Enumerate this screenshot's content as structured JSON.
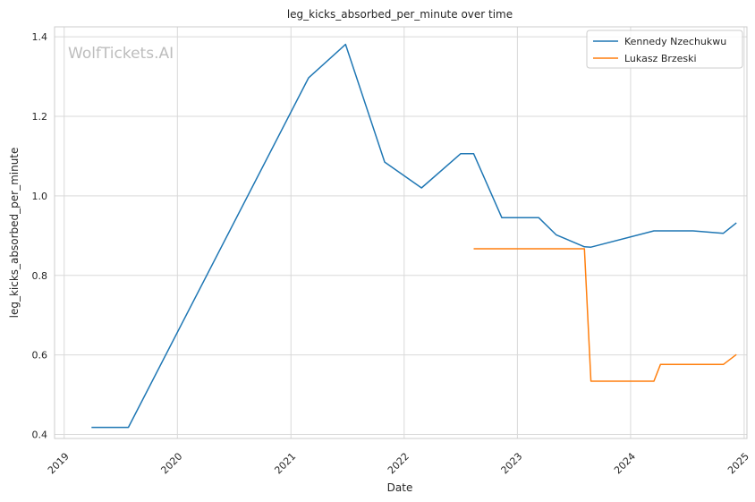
{
  "chart_data": {
    "type": "line",
    "title": "leg_kicks_absorbed_per_minute over time",
    "xlabel": "Date",
    "ylabel": "leg_kicks_absorbed_per_minute",
    "watermark": "WolfTickets.AI",
    "legend_position": "top-right",
    "grid": true,
    "xlim": [
      "2018-12-01",
      "2025-01-10"
    ],
    "ylim": [
      0.39,
      1.425
    ],
    "x_ticks": [
      "2019-01-01",
      "2020-01-01",
      "2021-01-01",
      "2022-01-01",
      "2023-01-01",
      "2024-01-01",
      "2025-01-01"
    ],
    "x_tick_labels": [
      "2019",
      "2020",
      "2021",
      "2022",
      "2023",
      "2024",
      "2025"
    ],
    "y_ticks": [
      0.4,
      0.6,
      0.8,
      1.0,
      1.2,
      1.4
    ],
    "y_tick_labels": [
      "0.4",
      "0.6",
      "0.8",
      "1.0",
      "1.2",
      "1.4"
    ],
    "series": [
      {
        "name": "Kennedy Nzechukwu",
        "color": "#1f77b4",
        "points": [
          [
            "2019-03-30",
            0.418
          ],
          [
            "2019-07-27",
            0.418
          ],
          [
            "2021-02-27",
            1.297
          ],
          [
            "2021-06-26",
            1.381
          ],
          [
            "2021-10-30",
            1.085
          ],
          [
            "2022-02-26",
            1.02
          ],
          [
            "2022-07-02",
            1.106
          ],
          [
            "2022-08-13",
            1.106
          ],
          [
            "2022-11-12",
            0.945
          ],
          [
            "2023-03-11",
            0.945
          ],
          [
            "2023-05-06",
            0.902
          ],
          [
            "2023-08-05",
            0.872
          ],
          [
            "2023-08-26",
            0.871
          ],
          [
            "2024-03-16",
            0.912
          ],
          [
            "2024-07-20",
            0.912
          ],
          [
            "2024-10-26",
            0.906
          ],
          [
            "2024-12-07",
            0.932
          ]
        ]
      },
      {
        "name": "Lukasz Brzeski",
        "color": "#ff7f0e",
        "points": [
          [
            "2022-08-13",
            0.867
          ],
          [
            "2023-08-05",
            0.867
          ],
          [
            "2023-08-26",
            0.534
          ],
          [
            "2024-03-16",
            0.534
          ],
          [
            "2024-04-06",
            0.576
          ],
          [
            "2024-10-26",
            0.576
          ],
          [
            "2024-12-07",
            0.601
          ]
        ]
      }
    ]
  }
}
